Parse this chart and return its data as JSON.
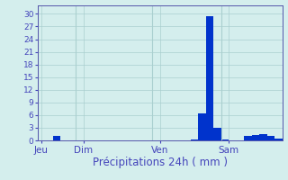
{
  "bars": [
    0,
    0,
    1.0,
    0,
    0,
    0,
    0,
    0,
    0,
    0,
    0,
    0,
    0,
    0,
    0,
    0,
    0,
    0,
    0,
    0,
    0.3,
    6.5,
    29.5,
    3.0,
    0.3,
    0,
    0,
    1.0,
    1.3,
    1.6,
    1.1,
    0.5
  ],
  "n_total": 33,
  "xtick_positions": [
    0.5,
    6,
    16,
    25
  ],
  "xtick_labels": [
    "Jeu",
    "Dim",
    "Ven",
    "Sam"
  ],
  "xlabel": "Précipitations 24h ( mm )",
  "yticks": [
    0,
    3,
    6,
    9,
    12,
    15,
    18,
    21,
    24,
    27,
    30
  ],
  "ymax": 32,
  "bar_color": "#0033cc",
  "background_color": "#d4eeed",
  "grid_color": "#aacfcf",
  "axis_color": "#5555aa",
  "text_color": "#4444bb",
  "xlabel_fontsize": 8.5,
  "ytick_fontsize": 6.5,
  "xtick_fontsize": 7.5,
  "vline_positions": [
    0,
    5,
    15,
    24
  ]
}
